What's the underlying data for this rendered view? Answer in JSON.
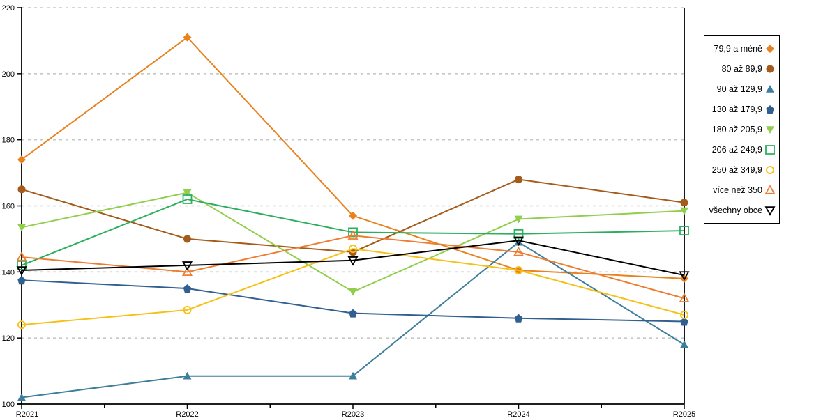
{
  "chart_data": {
    "type": "line",
    "title": "",
    "xlabel": "",
    "ylabel": "",
    "categories": [
      "R2021",
      "R2022",
      "R2023",
      "R2024",
      "R2025"
    ],
    "ylim": [
      100,
      220
    ],
    "yticks": [
      100,
      120,
      140,
      160,
      180,
      200,
      220
    ],
    "grid": "horizontal-dashed",
    "legend_position": "right",
    "axis_color": "#000000",
    "grid_color": "#c8c8c8",
    "series": [
      {
        "name": "79,9 a méně",
        "color": "#e8821e",
        "marker": "diamond",
        "fill": "filled",
        "values": [
          174,
          211,
          157,
          140.5,
          138
        ]
      },
      {
        "name": "80 až 89,9",
        "color": "#a45b1b",
        "marker": "circle",
        "fill": "filled",
        "values": [
          165,
          150,
          146,
          168,
          161
        ]
      },
      {
        "name": "90 až 129,9",
        "color": "#3d7e9b",
        "marker": "triangle-up",
        "fill": "filled",
        "values": [
          102,
          108.5,
          108.5,
          149,
          118
        ]
      },
      {
        "name": "130 až 179,9",
        "color": "#31608f",
        "marker": "pentagon",
        "fill": "filled",
        "values": [
          137.5,
          135,
          127.5,
          126,
          125
        ]
      },
      {
        "name": "180 až 205,9",
        "color": "#90ce4c",
        "marker": "triangle-down",
        "fill": "filled",
        "values": [
          153.5,
          164,
          134,
          156,
          158.5
        ]
      },
      {
        "name": "206 až 249,9",
        "color": "#2baf5e",
        "marker": "square",
        "fill": "open",
        "values": [
          142,
          162,
          152,
          151.5,
          152.5
        ]
      },
      {
        "name": "250 až 349,9",
        "color": "#f6c117",
        "marker": "circle",
        "fill": "open",
        "values": [
          124,
          128.5,
          147,
          140.5,
          127
        ]
      },
      {
        "name": "více než 350",
        "color": "#ed7d31",
        "marker": "triangle-up",
        "fill": "open",
        "values": [
          144.5,
          140,
          151,
          146,
          132
        ]
      },
      {
        "name": "všechny obce",
        "color": "#000000",
        "marker": "triangle-down",
        "fill": "open",
        "values": [
          140.5,
          142,
          143.5,
          149.5,
          139
        ]
      }
    ]
  }
}
